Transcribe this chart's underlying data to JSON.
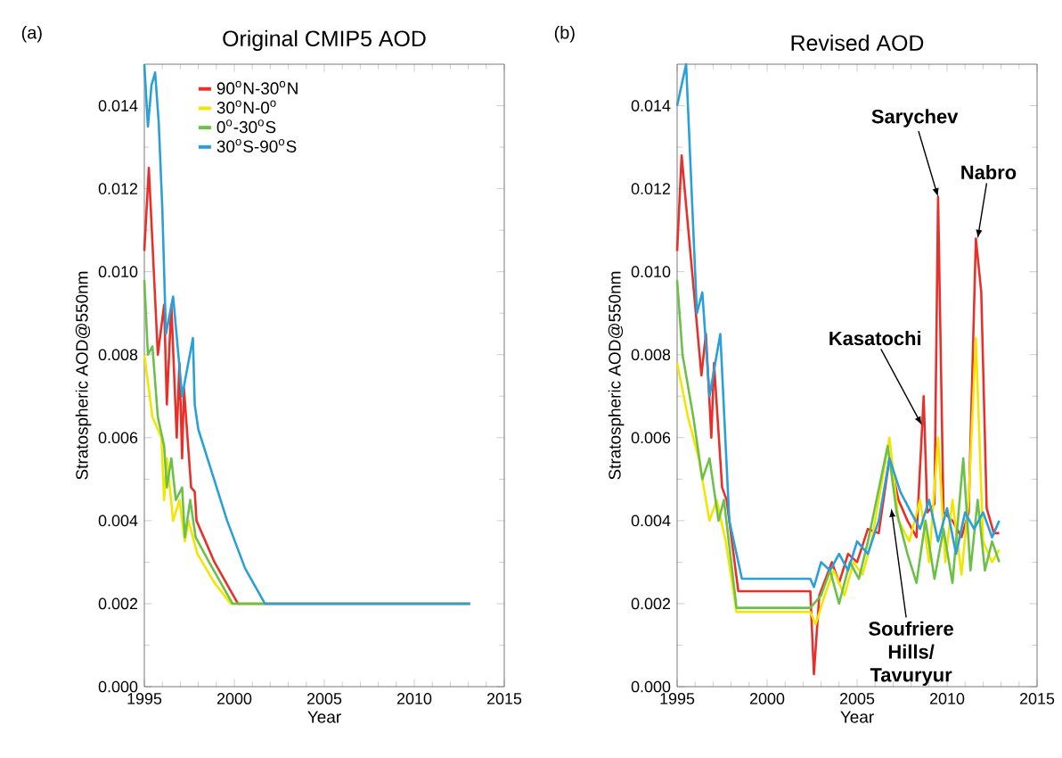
{
  "chart_data": [
    {
      "type": "line",
      "title": "Original CMIP5 AOD",
      "xlabel": "Year",
      "ylabel": "Stratospheric AOD@550nm",
      "xlim": [
        1995,
        2015
      ],
      "xticks": [
        1995,
        2000,
        2005,
        2010,
        2015
      ],
      "ylim": [
        0,
        0.015
      ],
      "yticks": [
        {
          "value": 0,
          "label": "0.000"
        },
        {
          "value": 0.002,
          "label": "0.002"
        },
        {
          "value": 0.004,
          "label": "0.004"
        },
        {
          "value": 0.006,
          "label": "0.006"
        },
        {
          "value": 0.008,
          "label": "0.008"
        },
        {
          "value": 0.01,
          "label": "0.010"
        },
        {
          "value": 0.012,
          "label": "0.012"
        },
        {
          "value": 0.014,
          "label": "0.014"
        }
      ],
      "legend": "top left",
      "annotations": [
        "(a)"
      ],
      "series": [
        {
          "name": "90$^{o}$N-30$^{o}$N",
          "color": "#e8302a",
          "x": [
            1995.0,
            1995.25,
            1995.75,
            1996.1,
            1996.25,
            1996.5,
            1996.8,
            1996.95,
            1997.1,
            1997.2,
            1997.6,
            1997.8,
            1997.9,
            1998.9,
            2000.2,
            2013.1
          ],
          "values": [
            0.0105,
            0.0125,
            0.008,
            0.0092,
            0.0068,
            0.0092,
            0.006,
            0.0078,
            0.0055,
            0.0072,
            0.0048,
            0.0047,
            0.004,
            0.003,
            0.002,
            0.002
          ]
        },
        {
          "name": "30$^{o}$N-0$^{o}$",
          "color": "#f2e600",
          "x": [
            1995.0,
            1995.45,
            1995.95,
            1996.1,
            1996.25,
            1996.6,
            1996.95,
            1997.25,
            1997.45,
            1997.95,
            1998.9,
            1999.8,
            2013.1
          ],
          "values": [
            0.008,
            0.0065,
            0.006,
            0.0045,
            0.0055,
            0.004,
            0.0045,
            0.0035,
            0.004,
            0.0032,
            0.0025,
            0.002,
            0.002
          ]
        },
        {
          "name": "0$^{o}$-30$^{o}$S",
          "color": "#6cc04a",
          "x": [
            1995.0,
            1995.2,
            1995.45,
            1995.75,
            1996.1,
            1996.25,
            1996.5,
            1996.75,
            1997.1,
            1997.25,
            1997.55,
            1997.85,
            1998.6,
            1999.9,
            2013.1
          ],
          "values": [
            0.0098,
            0.008,
            0.0082,
            0.0065,
            0.0058,
            0.0048,
            0.0055,
            0.0045,
            0.0048,
            0.0036,
            0.0045,
            0.0036,
            0.003,
            0.002,
            0.002
          ]
        },
        {
          "name": "30$^{o}$S-90$^{o}$S",
          "color": "#2a9fd8",
          "x": [
            1995.0,
            1995.2,
            1995.4,
            1995.6,
            1995.8,
            1996.0,
            1996.2,
            1996.6,
            1997.1,
            1997.7,
            1997.8,
            1998.0,
            1999.6,
            2000.6,
            2001.7,
            2013.1
          ],
          "values": [
            0.015,
            0.0135,
            0.0145,
            0.0148,
            0.0136,
            0.0115,
            0.0085,
            0.0094,
            0.007,
            0.0084,
            0.0068,
            0.0062,
            0.004,
            0.00285,
            0.002,
            0.002
          ]
        }
      ]
    },
    {
      "type": "line",
      "title": "Revised AOD",
      "xlabel": "Year",
      "ylabel": "Stratospheric AOD@550nm",
      "xlim": [
        1995,
        2015
      ],
      "xticks": [
        1995,
        2000,
        2005,
        2010,
        2015
      ],
      "ylim": [
        0,
        0.015
      ],
      "yticks": [
        {
          "value": 0,
          "label": "0.000"
        },
        {
          "value": 0.002,
          "label": "0.002"
        },
        {
          "value": 0.004,
          "label": "0.004"
        },
        {
          "value": 0.006,
          "label": "0.006"
        },
        {
          "value": 0.008,
          "label": "0.008"
        },
        {
          "value": 0.01,
          "label": "0.010"
        },
        {
          "value": 0.012,
          "label": "0.012"
        },
        {
          "value": 0.014,
          "label": "0.014"
        }
      ],
      "annotations": [
        "(b)",
        {
          "text": "Sarychev",
          "x": 2009.5,
          "y": 0.0118
        },
        {
          "text": "Nabro",
          "x": 2011.7,
          "y": 0.0108
        },
        {
          "text": "Kasatochi",
          "x": 2008.6,
          "y": 0.0063
        },
        {
          "text": "Soufriere Hills/ Tavuryur",
          "x": 2006.9,
          "y": 0.0043
        }
      ],
      "series": [
        {
          "color": "#e8302a",
          "x": [
            1995.0,
            1995.25,
            1996.0,
            1996.35,
            1996.6,
            1996.9,
            1997.05,
            1997.5,
            1997.75,
            1998.4,
            2002.4,
            2002.6,
            2002.9,
            2003.6,
            2004.0,
            2004.5,
            2005.0,
            2005.6,
            2006.2,
            2006.8,
            2007.3,
            2007.8,
            2008.3,
            2008.7,
            2008.9,
            2009.3,
            2009.5,
            2009.8,
            2010.3,
            2010.8,
            2011.2,
            2011.6,
            2011.9,
            2012.2,
            2012.6,
            2012.9
          ],
          "values": [
            0.0105,
            0.0128,
            0.0092,
            0.0075,
            0.0085,
            0.006,
            0.0078,
            0.0048,
            0.0045,
            0.0023,
            0.0023,
            0.0003,
            0.0022,
            0.003,
            0.0025,
            0.0032,
            0.003,
            0.0038,
            0.0037,
            0.0055,
            0.0045,
            0.004,
            0.0036,
            0.007,
            0.0042,
            0.0044,
            0.0118,
            0.0042,
            0.004,
            0.0036,
            0.0042,
            0.0108,
            0.0095,
            0.0043,
            0.0037,
            0.0037
          ]
        },
        {
          "color": "#f2e600",
          "x": [
            1995.0,
            1995.6,
            1996.2,
            1996.8,
            1997.2,
            1997.7,
            1998.3,
            2002.4,
            2002.7,
            2003.2,
            2003.7,
            2004.3,
            2004.8,
            2005.3,
            2005.8,
            2006.8,
            2007.3,
            2007.9,
            2008.5,
            2009.0,
            2009.5,
            2009.9,
            2010.3,
            2010.8,
            2011.2,
            2011.6,
            2012.0,
            2012.5,
            2012.9
          ],
          "values": [
            0.0078,
            0.0065,
            0.0055,
            0.004,
            0.0045,
            0.0035,
            0.0018,
            0.0018,
            0.0015,
            0.0022,
            0.0028,
            0.0022,
            0.003,
            0.0027,
            0.0035,
            0.006,
            0.004,
            0.0035,
            0.0045,
            0.003,
            0.006,
            0.003,
            0.0045,
            0.0027,
            0.0045,
            0.0084,
            0.0035,
            0.003,
            0.0033
          ]
        },
        {
          "color": "#6cc04a",
          "x": [
            1995.0,
            1995.3,
            1995.9,
            1996.4,
            1996.8,
            1997.3,
            1997.6,
            1998.3,
            2002.4,
            2003.0,
            2003.5,
            2004.0,
            2004.6,
            2005.1,
            2005.6,
            2006.7,
            2007.2,
            2007.8,
            2008.3,
            2008.8,
            2009.3,
            2009.8,
            2010.3,
            2010.9,
            2011.3,
            2011.7,
            2012.1,
            2012.5,
            2012.9
          ],
          "values": [
            0.0098,
            0.008,
            0.0065,
            0.005,
            0.0055,
            0.004,
            0.0045,
            0.0019,
            0.0019,
            0.0022,
            0.0028,
            0.002,
            0.003,
            0.0026,
            0.0035,
            0.0058,
            0.0042,
            0.0032,
            0.0025,
            0.004,
            0.0026,
            0.0038,
            0.0025,
            0.0055,
            0.0028,
            0.0045,
            0.0028,
            0.0035,
            0.003
          ]
        },
        {
          "color": "#2a9fd8",
          "x": [
            1995.0,
            1995.5,
            1996.1,
            1996.4,
            1996.8,
            1997.4,
            1997.9,
            1998.6,
            2002.4,
            2002.6,
            2003.0,
            2003.5,
            2004.0,
            2004.5,
            2005.0,
            2005.6,
            2006.2,
            2006.8,
            2007.4,
            2008.0,
            2008.5,
            2009.0,
            2009.5,
            2010.0,
            2010.5,
            2011.0,
            2011.5,
            2012.0,
            2012.5,
            2012.9
          ],
          "values": [
            0.014,
            0.015,
            0.009,
            0.0095,
            0.007,
            0.0085,
            0.004,
            0.0026,
            0.0026,
            0.0024,
            0.003,
            0.0028,
            0.0032,
            0.0028,
            0.0035,
            0.0032,
            0.004,
            0.0055,
            0.0047,
            0.0042,
            0.0038,
            0.0045,
            0.0035,
            0.0043,
            0.0032,
            0.0042,
            0.0038,
            0.0042,
            0.0036,
            0.004
          ]
        }
      ]
    }
  ]
}
